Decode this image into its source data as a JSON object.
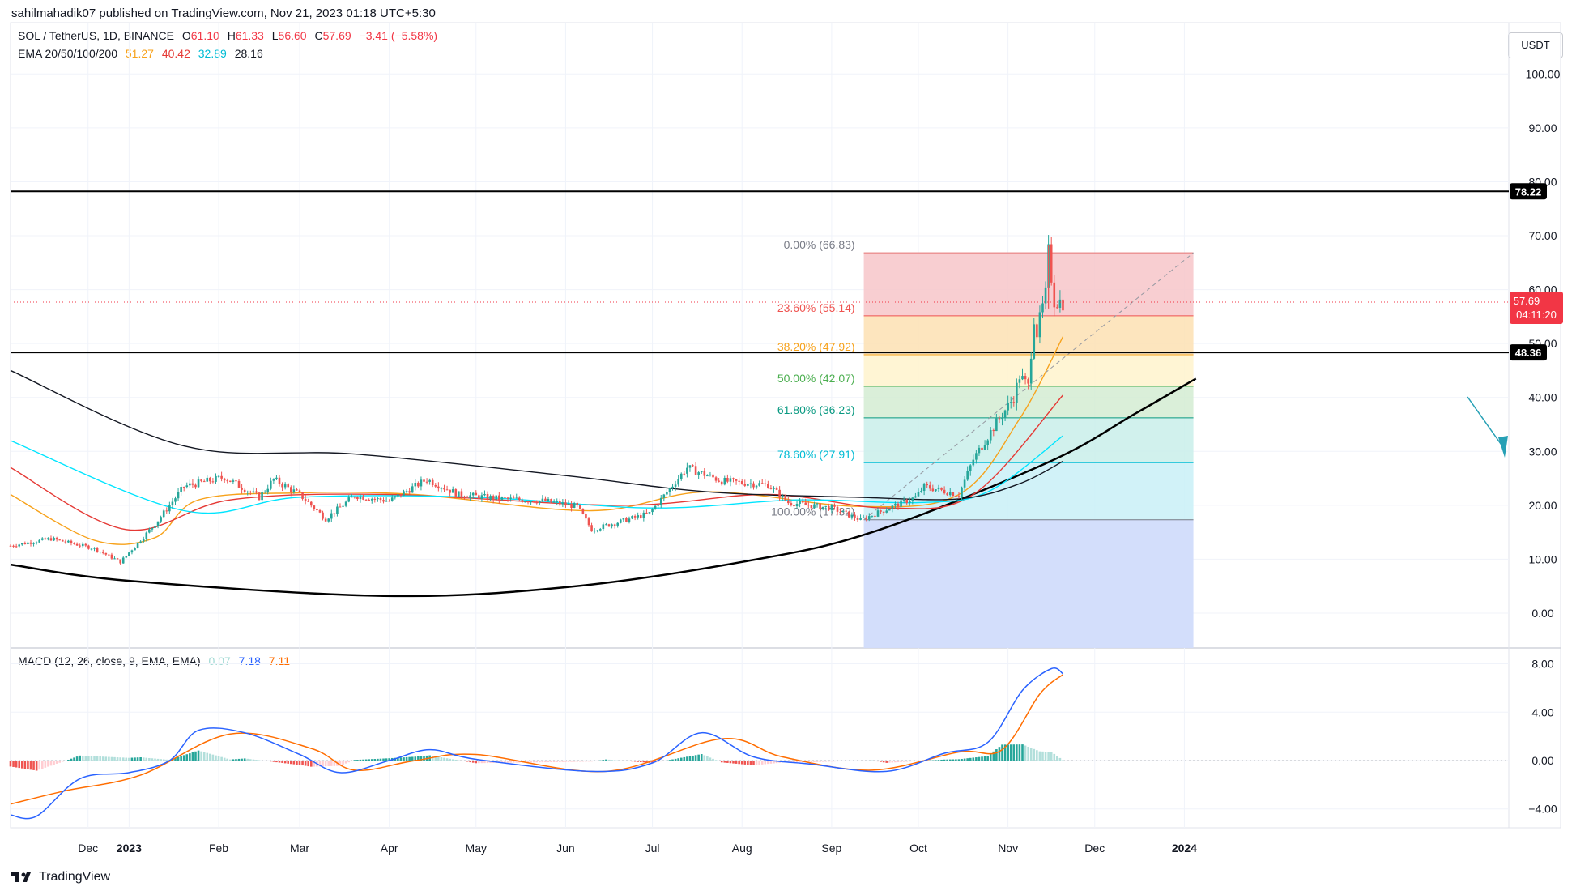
{
  "header": {
    "published": "sahilmahadik07 published on TradingView.com, Nov 21, 2023 01:18 UTC+5:30"
  },
  "legend": {
    "symbol": "SOL / TetherUS, 1D, BINANCE",
    "o_label": "O",
    "o_value": "61.10",
    "h_label": "H",
    "h_value": "61.33",
    "l_label": "L",
    "l_value": "56.60",
    "c_label": "C",
    "c_value": "57.69",
    "change": "−3.41 (−5.58%)",
    "ema_label": "EMA 20/50/100/200",
    "ema20": "51.27",
    "ema50": "40.42",
    "ema100": "32.89",
    "ema200": "28.16",
    "macd_label": "MACD (12, 26, close, 9, EMA, EMA)",
    "macd_hist": "0.07",
    "macd_line": "7.18",
    "macd_signal": "7.11"
  },
  "currency_button": "USDT",
  "brand": "TradingView",
  "colors": {
    "up": "#26a69a",
    "down": "#ef5350",
    "ema20": "#f7a21b",
    "ema50": "#e53935",
    "ema100": "#00e5ff",
    "ema200": "#131722",
    "macd_line": "#2962ff",
    "signal_line": "#ff6d00",
    "price_tag": "#f23645",
    "level_tag": "#000000"
  },
  "chart_data": {
    "type": "candlestick",
    "symbol": "SOL / TetherUS",
    "interval": "1D",
    "exchange": "BINANCE",
    "last_price": "57.69",
    "countdown": "04:11:20",
    "x_ticks": [
      "Dec",
      "2023",
      "Feb",
      "Mar",
      "Apr",
      "May",
      "Jun",
      "Jul",
      "Aug",
      "Sep",
      "Oct",
      "Nov",
      "Dec",
      "2024"
    ],
    "y_ticks": [
      "100.00",
      "90.00",
      "80.00",
      "70.00",
      "60.00",
      "50.00",
      "40.00",
      "30.00",
      "20.00",
      "10.00",
      "0.00"
    ],
    "y_range": [
      -6.5,
      110
    ],
    "horizontal_levels": [
      {
        "value": 78.22,
        "label": "78.22"
      },
      {
        "value": 48.36,
        "label": "48.36"
      }
    ],
    "fib_retracement": {
      "from_date": "2023-09-11",
      "to_date": "2023-11-15",
      "levels": [
        {
          "ratio": 0.0,
          "label": "0.00% (66.83)",
          "price": 66.83,
          "fill": "#f7c6c9",
          "line": "#e57373",
          "text": "#787b86"
        },
        {
          "ratio": 0.236,
          "label": "23.60% (55.14)",
          "price": 55.14,
          "fill": "#fde0b3",
          "line": "#ef5350",
          "text": "#ef5350"
        },
        {
          "ratio": 0.382,
          "label": "38.20% (47.92)",
          "price": 47.92,
          "fill": "#fff3cd",
          "line": "#f7a21b",
          "text": "#f7a21b"
        },
        {
          "ratio": 0.5,
          "label": "50.00% (42.07)",
          "price": 42.07,
          "fill": "#d4ecd2",
          "line": "#4caf50",
          "text": "#4caf50"
        },
        {
          "ratio": 0.618,
          "label": "61.80% (36.23)",
          "price": 36.23,
          "fill": "#c9eeea",
          "line": "#089981",
          "text": "#089981"
        },
        {
          "ratio": 0.786,
          "label": "78.60% (27.91)",
          "price": 27.91,
          "fill": "#c9f0f7",
          "line": "#00bcd4",
          "text": "#00bcd4"
        },
        {
          "ratio": 1.0,
          "label": "100.00% (17.32)",
          "price": 17.32,
          "fill": "#e0e0e0",
          "line": "#787b86",
          "text": "#787b86"
        }
      ],
      "extension_fill": "#d1dcfb"
    },
    "candles_monthly_path": [
      [
        "2022-11-21",
        12.5
      ],
      [
        "2022-12-05",
        13.8
      ],
      [
        "2022-12-20",
        12.0
      ],
      [
        "2022-12-29",
        9.5
      ],
      [
        "2023-01-10",
        16.5
      ],
      [
        "2023-01-20",
        23.5
      ],
      [
        "2023-02-03",
        25.2
      ],
      [
        "2023-02-15",
        21.5
      ],
      [
        "2023-02-20",
        24.8
      ],
      [
        "2023-03-01",
        22.0
      ],
      [
        "2023-03-10",
        17.5
      ],
      [
        "2023-03-20",
        21.8
      ],
      [
        "2023-04-01",
        20.8
      ],
      [
        "2023-04-14",
        24.8
      ],
      [
        "2023-04-25",
        22.0
      ],
      [
        "2023-05-10",
        21.2
      ],
      [
        "2023-05-25",
        20.8
      ],
      [
        "2023-06-05",
        19.8
      ],
      [
        "2023-06-10",
        15.5
      ],
      [
        "2023-06-30",
        18.5
      ],
      [
        "2023-07-13",
        27.0
      ],
      [
        "2023-07-25",
        24.5
      ],
      [
        "2023-08-10",
        23.8
      ],
      [
        "2023-08-17",
        20.5
      ],
      [
        "2023-09-01",
        19.5
      ],
      [
        "2023-09-11",
        17.3
      ],
      [
        "2023-09-30",
        21.5
      ],
      [
        "2023-10-03",
        23.5
      ],
      [
        "2023-10-15",
        22.0
      ],
      [
        "2023-10-20",
        28.5
      ],
      [
        "2023-10-27",
        34.5
      ],
      [
        "2023-11-03",
        40.0
      ],
      [
        "2023-11-05",
        44.0
      ],
      [
        "2023-11-08",
        42.0
      ],
      [
        "2023-11-10",
        55.0
      ],
      [
        "2023-11-11",
        52.0
      ],
      [
        "2023-11-14",
        59.0
      ],
      [
        "2023-11-15",
        66.8
      ],
      [
        "2023-11-17",
        58.0
      ],
      [
        "2023-11-20",
        57.69
      ]
    ],
    "ema_series": {
      "ema20": [
        [
          "2022-11-21",
          22.0
        ],
        [
          "2022-12-20",
          13.5
        ],
        [
          "2023-01-10",
          14.0
        ],
        [
          "2023-01-25",
          21.0
        ],
        [
          "2023-03-01",
          22.3
        ],
        [
          "2023-04-10",
          22.0
        ],
        [
          "2023-06-10",
          19.0
        ],
        [
          "2023-07-20",
          22.5
        ],
        [
          "2023-09-10",
          19.8
        ],
        [
          "2023-10-15",
          22.0
        ],
        [
          "2023-11-05",
          36.0
        ],
        [
          "2023-11-20",
          51.27
        ]
      ],
      "ema50": [
        [
          "2022-11-21",
          27.0
        ],
        [
          "2022-12-31",
          15.5
        ],
        [
          "2023-02-05",
          21.0
        ],
        [
          "2023-04-01",
          22.0
        ],
        [
          "2023-06-20",
          20.0
        ],
        [
          "2023-08-10",
          22.0
        ],
        [
          "2023-09-20",
          19.5
        ],
        [
          "2023-10-20",
          22.0
        ],
        [
          "2023-11-20",
          40.42
        ]
      ],
      "ema100": [
        [
          "2022-11-21",
          32.0
        ],
        [
          "2023-01-20",
          19.0
        ],
        [
          "2023-03-01",
          21.5
        ],
        [
          "2023-05-01",
          21.5
        ],
        [
          "2023-07-01",
          19.5
        ],
        [
          "2023-08-20",
          21.0
        ],
        [
          "2023-10-01",
          20.5
        ],
        [
          "2023-10-25",
          22.5
        ],
        [
          "2023-11-20",
          32.89
        ]
      ],
      "ema200": [
        [
          "2022-11-21",
          45.0
        ],
        [
          "2023-01-20",
          31.0
        ],
        [
          "2023-03-20",
          29.5
        ],
        [
          "2023-06-01",
          25.5
        ],
        [
          "2023-07-20",
          22.5
        ],
        [
          "2023-09-10",
          21.5
        ],
        [
          "2023-10-15",
          21.2
        ],
        [
          "2023-11-05",
          24.0
        ],
        [
          "2023-11-20",
          28.16
        ]
      ]
    },
    "trendline_curve": [
      [
        "2022-11-21",
        9.0
      ],
      [
        "2023-01-01",
        6.0
      ],
      [
        "2023-03-30",
        3.2
      ],
      [
        "2023-06-01",
        4.8
      ],
      [
        "2023-08-01",
        9.5
      ],
      [
        "2023-09-15",
        15.0
      ],
      [
        "2023-11-15",
        28.0
      ],
      [
        "2023-12-15",
        37.0
      ],
      [
        "2024-01-05",
        43.5
      ]
    ],
    "macd": {
      "y_ticks": [
        "8.00",
        "4.00",
        "0.00",
        "−4.00"
      ],
      "y_range": [
        -6.2,
        8.8
      ],
      "macd_line": [
        [
          "2022-11-21",
          -4.5
        ],
        [
          "2022-11-30",
          -4.6
        ],
        [
          "2022-12-15",
          -1.5
        ],
        [
          "2023-01-01",
          -1.0
        ],
        [
          "2023-01-15",
          0.0
        ],
        [
          "2023-01-25",
          2.5
        ],
        [
          "2023-02-10",
          2.3
        ],
        [
          "2023-03-01",
          0.5
        ],
        [
          "2023-03-15",
          -1.0
        ],
        [
          "2023-04-01",
          0.0
        ],
        [
          "2023-04-15",
          0.9
        ],
        [
          "2023-05-01",
          0.1
        ],
        [
          "2023-06-10",
          -0.9
        ],
        [
          "2023-07-01",
          -0.2
        ],
        [
          "2023-07-18",
          2.3
        ],
        [
          "2023-08-05",
          0.3
        ],
        [
          "2023-08-25",
          -0.3
        ],
        [
          "2023-09-20",
          -0.9
        ],
        [
          "2023-10-10",
          0.6
        ],
        [
          "2023-10-25",
          1.5
        ],
        [
          "2023-11-06",
          5.8
        ],
        [
          "2023-11-16",
          7.6
        ],
        [
          "2023-11-20",
          7.18
        ]
      ],
      "signal_line": [
        [
          "2022-11-21",
          -3.6
        ],
        [
          "2022-12-10",
          -2.5
        ],
        [
          "2023-01-05",
          -1.2
        ],
        [
          "2023-02-05",
          2.2
        ],
        [
          "2023-03-05",
          1.0
        ],
        [
          "2023-03-20",
          -0.8
        ],
        [
          "2023-04-10",
          0.0
        ],
        [
          "2023-05-01",
          0.5
        ],
        [
          "2023-06-15",
          -0.9
        ],
        [
          "2023-07-25",
          1.8
        ],
        [
          "2023-08-15",
          0.3
        ],
        [
          "2023-09-15",
          -0.8
        ],
        [
          "2023-10-15",
          0.7
        ],
        [
          "2023-10-30",
          0.9
        ],
        [
          "2023-11-12",
          5.5
        ],
        [
          "2023-11-20",
          7.11
        ]
      ]
    }
  }
}
